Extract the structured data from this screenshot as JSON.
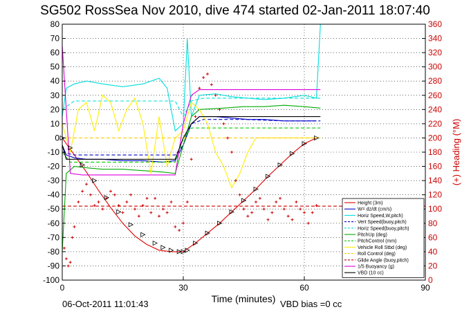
{
  "chart_data": {
    "type": "line",
    "title": "SG502 RossSea Nov 2010, dive 474 started 02-Jan-2011 18:07:40",
    "xlabel": "Time (minutes)",
    "ylabel_right": "(+) Heading (°M)",
    "xlim": [
      0,
      90
    ],
    "ylim": [
      -100,
      80
    ],
    "ylim_right": [
      0,
      360
    ],
    "x_ticks": [
      0,
      30,
      60,
      90
    ],
    "y_ticks": [
      -100,
      -90,
      -80,
      -70,
      -60,
      -50,
      -40,
      -30,
      -20,
      -10,
      0,
      10,
      20,
      30,
      40,
      50,
      60,
      70,
      80
    ],
    "y_ticks_right": [
      0,
      20,
      40,
      60,
      80,
      100,
      120,
      140,
      160,
      180,
      200,
      220,
      240,
      260,
      280,
      300,
      320,
      340,
      360
    ],
    "grid": true,
    "legend_position": "bottom-right",
    "footer_date": "06-Oct-2011 11:01:43",
    "footer_note": "VBD bias =0 cc",
    "series": [
      {
        "name": "Height (3m)",
        "color": "#e00000",
        "style": "solid",
        "x": [
          0,
          3,
          6,
          9,
          12,
          15,
          18,
          21,
          24,
          27,
          30,
          33,
          36,
          39,
          42,
          45,
          48,
          51,
          54,
          57,
          60,
          63
        ],
        "y": [
          0,
          -12,
          -24,
          -37,
          -49,
          -60,
          -69,
          -75,
          -79,
          -80,
          -80,
          -74,
          -67,
          -60,
          -52,
          -44,
          -36,
          -27,
          -19,
          -11,
          -4,
          0
        ]
      },
      {
        "name": "W= dz/dt (cm/s)",
        "color": "#0000cc",
        "style": "solid",
        "x": [
          0,
          1,
          3,
          6,
          10,
          15,
          20,
          25,
          28,
          30,
          32,
          34,
          38,
          42,
          46,
          50,
          55,
          60,
          63
        ],
        "y": [
          -5,
          -12,
          -14,
          -15,
          -15,
          -16,
          -16,
          -17,
          -16,
          -5,
          10,
          15,
          15,
          14,
          13,
          13,
          12,
          12,
          12
        ]
      },
      {
        "name": "Horiz Speed,W,pitch)",
        "color": "#00dddd",
        "style": "solid",
        "x": [
          0,
          1,
          3,
          6,
          10,
          15,
          20,
          24,
          26,
          28,
          30,
          31,
          32,
          34,
          38,
          42,
          46,
          50,
          55,
          60,
          63,
          64
        ],
        "y": [
          15,
          35,
          38,
          40,
          38,
          36,
          38,
          42,
          35,
          5,
          10,
          70,
          15,
          30,
          31,
          29,
          28,
          27,
          28,
          30,
          28,
          80
        ]
      },
      {
        "name": "Vert Speed(buoy,pitch)",
        "color": "#0000cc",
        "style": "dashed",
        "x": [
          0,
          3,
          10,
          20,
          28,
          30,
          32,
          35,
          45,
          55,
          64
        ],
        "y": [
          -10,
          -12,
          -12,
          -12,
          -12,
          -5,
          10,
          13,
          13,
          12,
          12
        ]
      },
      {
        "name": "Horiz Speed(buoy,pitch)",
        "color": "#00dddd",
        "style": "dashed",
        "x": [
          0,
          3,
          10,
          20,
          28,
          30,
          32,
          35,
          45,
          55,
          64
        ],
        "y": [
          20,
          26,
          26,
          26,
          26,
          15,
          26,
          28,
          28,
          28,
          28
        ]
      },
      {
        "name": "PitchUp (deg)",
        "color": "#00aa00",
        "style": "solid",
        "x": [
          0,
          1,
          3,
          6,
          10,
          15,
          20,
          25,
          28,
          30,
          32,
          34,
          40,
          45,
          50,
          55,
          60,
          64
        ],
        "y": [
          -80,
          -25,
          -20,
          -21,
          -22,
          -22,
          -23,
          -24,
          -25,
          -5,
          15,
          20,
          21,
          22,
          22,
          23,
          22,
          21
        ]
      },
      {
        "name": "PitchControl (mm)",
        "color": "#00cc00",
        "style": "dashed",
        "x": [
          0,
          2,
          28,
          30,
          32,
          64
        ],
        "y": [
          -10,
          -17,
          -17,
          0,
          7,
          7
        ]
      },
      {
        "name": "Vehicle Roll Stbd (deg)",
        "color": "#ffee00",
        "style": "solid",
        "x": [
          0,
          2,
          4,
          6,
          8,
          10,
          12,
          14,
          16,
          18,
          20,
          22,
          24,
          26,
          28,
          30,
          32,
          34,
          36,
          38,
          40,
          42,
          44,
          46,
          48,
          50,
          55,
          60,
          64
        ],
        "y": [
          10,
          -10,
          20,
          25,
          5,
          30,
          25,
          5,
          20,
          28,
          10,
          -25,
          15,
          -20,
          0,
          5,
          25,
          20,
          10,
          -10,
          -20,
          -35,
          -25,
          -10,
          0,
          0,
          0,
          0,
          0
        ]
      },
      {
        "name": "Roll Control (deg)",
        "color": "#ffcc00",
        "style": "dashed",
        "x": [
          0,
          64
        ],
        "y": [
          0,
          0
        ]
      },
      {
        "name": "Glide Angle (buoy,pitch)",
        "color": "#cc0000",
        "style": "dashed",
        "x": [
          0,
          90
        ],
        "y": [
          -48,
          -48
        ]
      },
      {
        "name": "1/5 Buoyancy (g)",
        "color": "#dd00dd",
        "style": "solid",
        "x": [
          0,
          1,
          2,
          5,
          10,
          20,
          28,
          30,
          32,
          34,
          40,
          50,
          60,
          64
        ],
        "y": [
          65,
          20,
          -25,
          -26,
          -26,
          -26,
          -26,
          10,
          30,
          34,
          34,
          34,
          34,
          34
        ]
      },
      {
        "name": "VBD (10 cc)",
        "color": "#000000",
        "style": "solid",
        "x": [
          0,
          1,
          2,
          5,
          10,
          20,
          28,
          30,
          32,
          34,
          40,
          50,
          60,
          64
        ],
        "y": [
          -5,
          -15,
          -15,
          -15,
          -15,
          -15,
          -15,
          0,
          10,
          15,
          15,
          15,
          15,
          15
        ]
      }
    ],
    "heading": {
      "name": "(+) Heading (°M)",
      "color": "#cc0000",
      "marker": "+",
      "axis": "right",
      "x": [
        0.5,
        1,
        1.5,
        2,
        2.5,
        3,
        4,
        5,
        6,
        7,
        8,
        9,
        10,
        11,
        12,
        13,
        14,
        15,
        16,
        17,
        18,
        19,
        20,
        21,
        22,
        23,
        24,
        25,
        26,
        27,
        28,
        29,
        30,
        31,
        32,
        33,
        34,
        35,
        36,
        37,
        38,
        39,
        40,
        41,
        42,
        43,
        44,
        45,
        46,
        47,
        48,
        49,
        50,
        51,
        52,
        53,
        54,
        55,
        56,
        57,
        58,
        59,
        60,
        61,
        62,
        63
      ],
      "y": [
        45,
        30,
        20,
        25,
        60,
        75,
        110,
        125,
        135,
        120,
        105,
        110,
        100,
        115,
        125,
        120,
        105,
        95,
        110,
        120,
        100,
        90,
        105,
        115,
        95,
        115,
        90,
        100,
        95,
        110,
        75,
        70,
        80,
        110,
        170,
        230,
        270,
        285,
        290,
        275,
        260,
        240,
        220,
        200,
        180,
        140,
        120,
        100,
        90,
        95,
        110,
        115,
        100,
        85,
        95,
        110,
        115,
        100,
        90,
        85,
        110,
        100,
        95,
        80,
        95,
        105
      ]
    },
    "markers_descent_ascent": {
      "x": [
        0,
        2,
        5,
        8,
        11,
        14,
        17,
        20,
        23,
        25,
        27,
        29,
        30,
        31,
        33,
        36,
        39,
        42,
        45,
        48,
        51,
        54,
        57,
        60,
        63
      ],
      "y": [
        0,
        -7,
        -19,
        -30,
        -42,
        -52,
        -61,
        -68,
        -74,
        -77,
        -79,
        -80,
        -80,
        -79,
        -74,
        -67,
        -60,
        -52,
        -44,
        -36,
        -27,
        -19,
        -11,
        -4,
        0
      ]
    }
  }
}
